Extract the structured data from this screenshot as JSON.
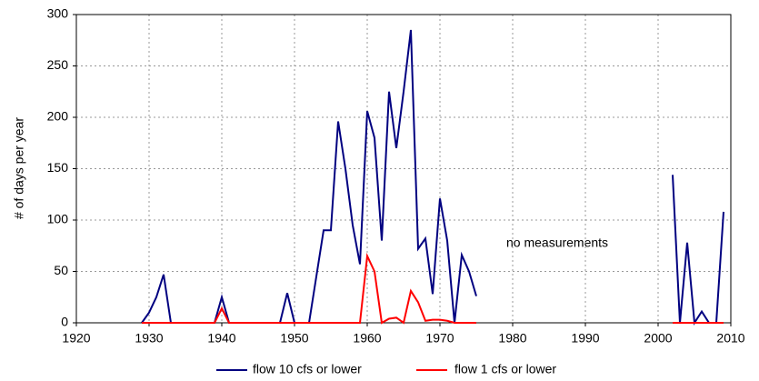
{
  "chart_data": {
    "type": "line",
    "y_label": "# of days per year",
    "annotation": "no measurements",
    "x": [
      1929,
      1930,
      1931,
      1932,
      1933,
      1934,
      1935,
      1936,
      1937,
      1938,
      1939,
      1940,
      1941,
      1942,
      1943,
      1944,
      1945,
      1946,
      1947,
      1948,
      1949,
      1950,
      1951,
      1952,
      1953,
      1954,
      1955,
      1956,
      1957,
      1958,
      1959,
      1960,
      1961,
      1962,
      1963,
      1964,
      1965,
      1966,
      1967,
      1968,
      1969,
      1970,
      1971,
      1972,
      1973,
      1974,
      1975,
      1976,
      2002,
      2003,
      2004,
      2005,
      2006,
      2007,
      2008,
      2009
    ],
    "series": [
      {
        "name": "flow 10 cfs or lower",
        "color": "#000080",
        "values": [
          0,
          10,
          25,
          47,
          0,
          0,
          0,
          0,
          0,
          0,
          0,
          25,
          0,
          0,
          0,
          0,
          0,
          0,
          0,
          0,
          29,
          0,
          0,
          0,
          45,
          90,
          90,
          196,
          150,
          95,
          57,
          206,
          180,
          80,
          225,
          170,
          225,
          285,
          72,
          82,
          28,
          121,
          80,
          0,
          66,
          50,
          26,
          null,
          144,
          0,
          78,
          0,
          11,
          0,
          0,
          108
        ]
      },
      {
        "name": "flow 1 cfs or lower",
        "color": "#ff0000",
        "values": [
          0,
          0,
          0,
          0,
          0,
          0,
          0,
          0,
          0,
          0,
          0,
          14,
          0,
          0,
          0,
          0,
          0,
          0,
          0,
          0,
          0,
          0,
          0,
          0,
          0,
          0,
          0,
          0,
          0,
          0,
          0,
          65,
          50,
          0,
          4,
          5,
          0,
          31,
          20,
          2,
          3,
          3,
          2,
          0,
          0,
          0,
          0,
          null,
          0,
          0,
          0,
          0,
          0,
          0,
          0,
          0
        ]
      }
    ],
    "xlim": [
      1920,
      2010
    ],
    "xticks": [
      1920,
      1930,
      1940,
      1950,
      1960,
      1970,
      1980,
      1990,
      2000,
      2010
    ],
    "ylim": [
      0,
      300
    ],
    "yticks": [
      0,
      50,
      100,
      150,
      200,
      250,
      300
    ],
    "grid": true,
    "legend": "bottom"
  }
}
